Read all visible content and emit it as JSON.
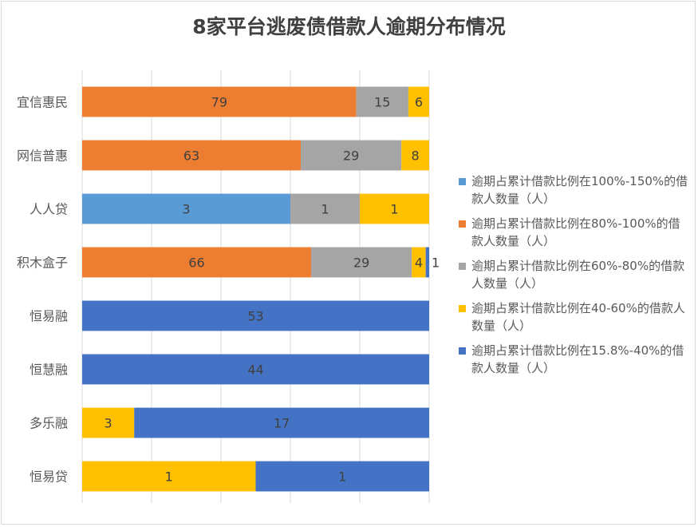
{
  "chart_data": {
    "type": "bar",
    "orientation": "horizontal",
    "stacking": "percent",
    "title": "8家平台逃废债借款人逾期分布情况",
    "categories": [
      "宜信惠民",
      "网信普惠",
      "人人贷",
      "积木盒子",
      "恒易融",
      "恒慧融",
      "多乐融",
      "恒易贷"
    ],
    "series": [
      {
        "name": "逾期占累计借款比例在100%-150%的借款人数量（人）",
        "color": "#5b9bd5",
        "values": [
          0,
          0,
          3,
          0,
          0,
          0,
          0,
          0
        ]
      },
      {
        "name": "逾期占累计借款比例在80%-100%的借款人数量（人）",
        "color": "#ed7d31",
        "values": [
          79,
          63,
          0,
          66,
          0,
          0,
          0,
          0
        ]
      },
      {
        "name": "逾期占累计借款比例在60%-80%的借款人数量（人）",
        "color": "#a5a5a5",
        "values": [
          15,
          29,
          1,
          29,
          0,
          0,
          0,
          0
        ]
      },
      {
        "name": "逾期占累计借款比例在40-60%的借款人数量（人）",
        "color": "#ffc000",
        "values": [
          6,
          8,
          1,
          4,
          0,
          0,
          3,
          1
        ]
      },
      {
        "name": "逾期占累计借款比例在15.8%-40%的借款人数量（人）",
        "color": "#4472c4",
        "values": [
          0,
          0,
          0,
          1,
          53,
          44,
          17,
          1
        ]
      }
    ],
    "xlim": [
      0,
      1
    ],
    "grid": true,
    "legend_position": "right",
    "data_labels": true
  }
}
